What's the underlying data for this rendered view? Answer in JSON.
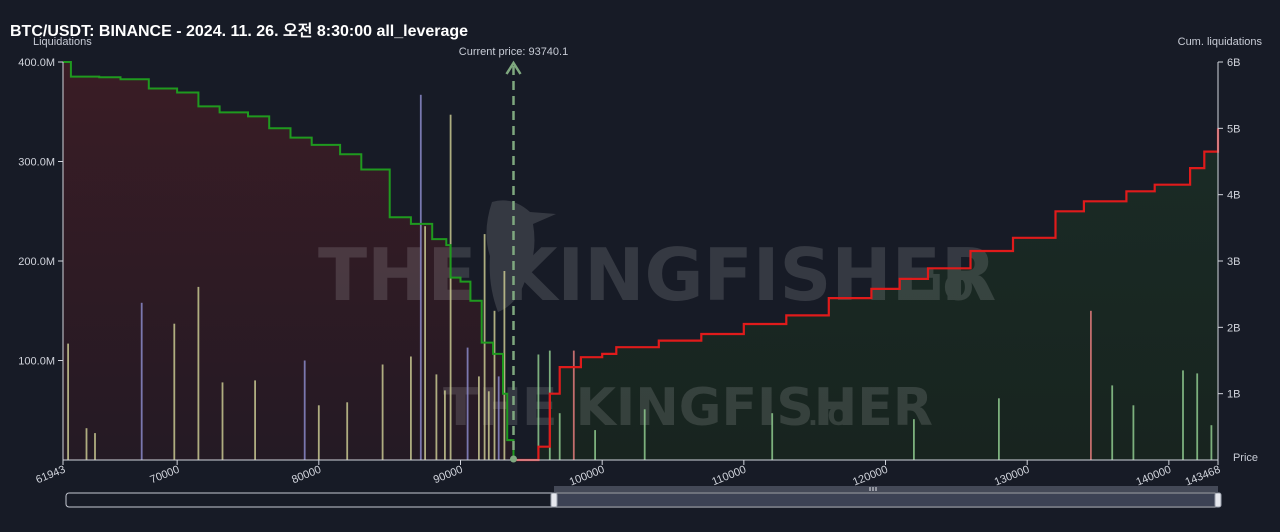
{
  "title": "BTC/USDT: BINANCE - 2024. 11. 26. 오전 8:30:00 all_leverage",
  "left_axis_title": "Liquidations",
  "right_axis_title": "Cum. liquidations",
  "x_axis_title": "Price",
  "current_price_label": "Current price: 93740.1",
  "watermark_main": "THE KINGFISHER",
  "watermark_suffix": ".IO",
  "watermark_secondary": "THE KINGFISHER",
  "watermark_secondary_suffix": ".IO",
  "colors": {
    "background": "#171b26",
    "long_area": "#3a1a22",
    "short_area": "#162a22",
    "long_cum_line": "#1f9a1f",
    "short_cum_line": "#e01b1b",
    "current_price": "#7fa87f",
    "bar_yellow": "#c8c890",
    "bar_green": "#8ec98e",
    "bar_purple": "#8a88c8",
    "bar_red": "#e07a7a"
  },
  "chart_data": {
    "type": "bar",
    "title": "BTC/USDT: BINANCE - 2024. 11. 26. 오전 8:30:00 all_leverage",
    "xlabel": "Price",
    "ylabel": "Liquidations",
    "y2label": "Cum. liquidations",
    "xlim": [
      61943,
      143468
    ],
    "ylim": [
      0,
      400000000
    ],
    "y2lim": [
      0,
      6000000000
    ],
    "current_price": 93740.1,
    "x_ticks": [
      61943,
      70000,
      80000,
      90000,
      100000,
      110000,
      120000,
      130000,
      140000,
      143468
    ],
    "x_tick_labels": [
      "61943",
      "70000",
      "80000",
      "90000",
      "100000",
      "110000",
      "120000",
      "130000",
      "140000",
      "143468"
    ],
    "y_ticks": [
      100000000,
      200000000,
      300000000,
      400000000
    ],
    "y_tick_labels": [
      "100.0M",
      "200.0M",
      "300.0M",
      "400.0M"
    ],
    "y2_ticks": [
      1000000000,
      2000000000,
      3000000000,
      4000000000,
      5000000000,
      6000000000
    ],
    "y2_tick_labels": [
      "1B",
      "2B",
      "3B",
      "4B",
      "5B",
      "6B"
    ],
    "grid": false,
    "series": [
      {
        "type": "line",
        "axis": "right",
        "points": [
          [
            61943,
            6000000000
          ],
          [
            62500,
            5780000000
          ],
          [
            64500,
            5770000000
          ],
          [
            66000,
            5740000000
          ],
          [
            68000,
            5600000000
          ],
          [
            70000,
            5540000000
          ],
          [
            71500,
            5330000000
          ],
          [
            73000,
            5240000000
          ],
          [
            75000,
            5180000000
          ],
          [
            76500,
            5000000000
          ],
          [
            78000,
            4860000000
          ],
          [
            79500,
            4750000000
          ],
          [
            81500,
            4610000000
          ],
          [
            83000,
            4380000000
          ],
          [
            85000,
            3660000000
          ],
          [
            86500,
            3560000000
          ],
          [
            88000,
            3330000000
          ],
          [
            89000,
            3240000000
          ],
          [
            89300,
            2750000000
          ],
          [
            90000,
            2690000000
          ],
          [
            90700,
            2400000000
          ],
          [
            91500,
            1770000000
          ],
          [
            92300,
            1600000000
          ],
          [
            93000,
            1000000000
          ],
          [
            93300,
            300000000
          ],
          [
            93740,
            0
          ]
        ]
      },
      {
        "type": "line",
        "axis": "right",
        "points": [
          [
            93740,
            0
          ],
          [
            95500,
            200000000
          ],
          [
            96300,
            1000000000
          ],
          [
            97000,
            1400000000
          ],
          [
            98500,
            1550000000
          ],
          [
            100000,
            1600000000
          ],
          [
            101000,
            1700000000
          ],
          [
            104000,
            1800000000
          ],
          [
            107000,
            1900000000
          ],
          [
            110000,
            2050000000
          ],
          [
            113000,
            2180000000
          ],
          [
            116000,
            2440000000
          ],
          [
            119000,
            2580000000
          ],
          [
            121000,
            2730000000
          ],
          [
            123000,
            2890000000
          ],
          [
            126000,
            3150000000
          ],
          [
            129000,
            3350000000
          ],
          [
            132000,
            3750000000
          ],
          [
            134000,
            3900000000
          ],
          [
            137000,
            4050000000
          ],
          [
            139000,
            4150000000
          ],
          [
            141500,
            4400000000
          ],
          [
            142500,
            4650000000
          ],
          [
            143468,
            5000000000
          ]
        ]
      },
      {
        "type": "bar",
        "name": "liquidation_levels",
        "axis": "left",
        "x": [
          62300,
          63600,
          64200,
          67500,
          69800,
          71500,
          73200,
          75500,
          79000,
          80000,
          82000,
          84500,
          86500,
          87200,
          87500,
          88300,
          88900,
          89300,
          90500,
          91300,
          91700,
          92000,
          92400,
          92700,
          93100,
          95500,
          96300,
          97000,
          98000,
          99500,
          103000,
          112000,
          122000,
          128000,
          134500,
          136000,
          137500,
          141000,
          142000,
          143000
        ],
        "values": [
          117000000,
          32000000,
          27000000,
          158000000,
          137000000,
          174000000,
          78000000,
          80000000,
          100000000,
          55000000,
          58000000,
          96000000,
          104000000,
          367000000,
          235000000,
          86000000,
          70000000,
          347000000,
          113000000,
          84000000,
          227000000,
          69000000,
          150000000,
          84000000,
          190000000,
          106000000,
          110000000,
          47000000,
          110000000,
          30000000,
          51000000,
          47000000,
          41000000,
          62000000,
          150000000,
          75000000,
          55000000,
          90000000,
          87000000,
          35000000
        ]
      }
    ]
  }
}
